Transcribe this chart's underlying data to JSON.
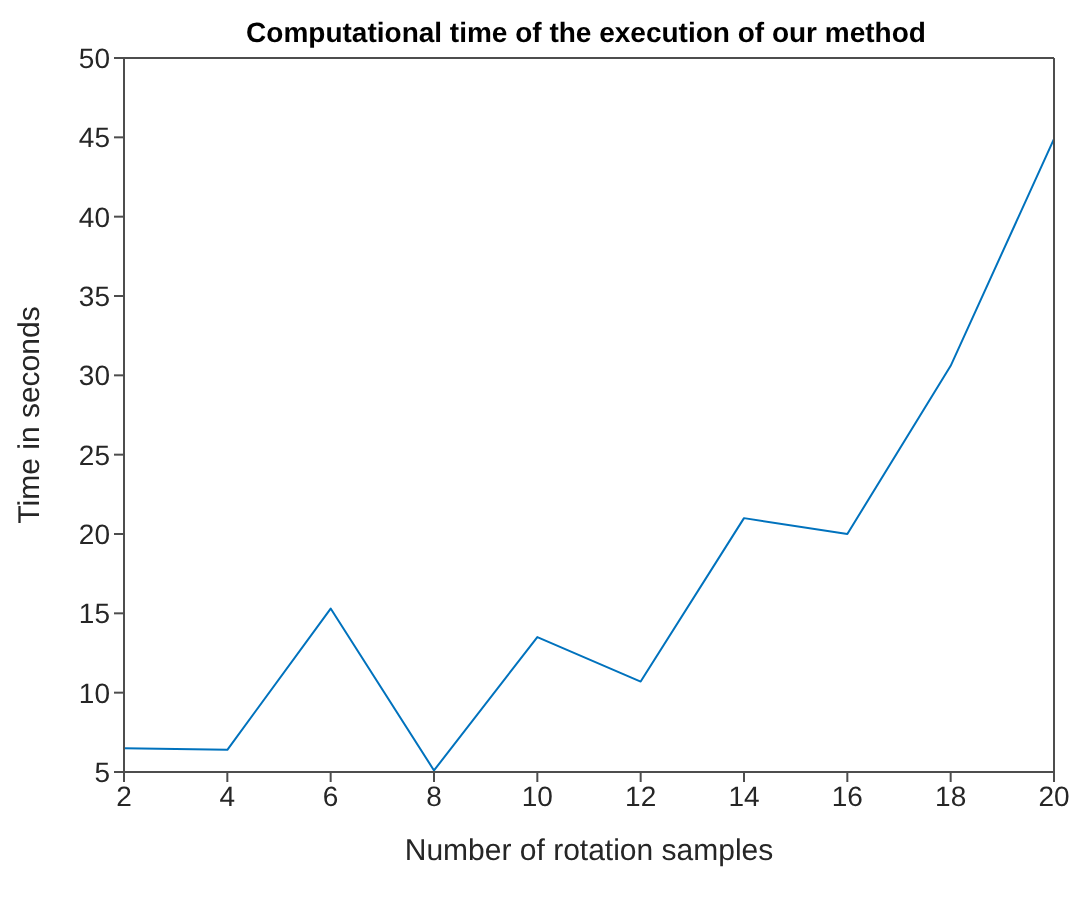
{
  "chart_data": {
    "type": "line",
    "title": "Computational time of the execution of our method",
    "xlabel": "Number of rotation samples",
    "ylabel": "Time in seconds",
    "x": [
      2,
      4,
      6,
      8,
      10,
      12,
      14,
      16,
      18,
      20
    ],
    "series": [
      {
        "color": "#0072bd",
        "values": [
          6.5,
          6.4,
          15.3,
          5.1,
          13.5,
          10.7,
          21.0,
          20.0,
          30.6,
          44.9
        ]
      }
    ],
    "xlim": [
      2,
      20
    ],
    "xticks": [
      2,
      4,
      6,
      8,
      10,
      12,
      14,
      16,
      18,
      20
    ],
    "ylim": [
      5,
      50
    ],
    "yticks": [
      5,
      10,
      15,
      20,
      25,
      30,
      35,
      40,
      45,
      50
    ],
    "marker": "none",
    "line_style": "solid"
  }
}
